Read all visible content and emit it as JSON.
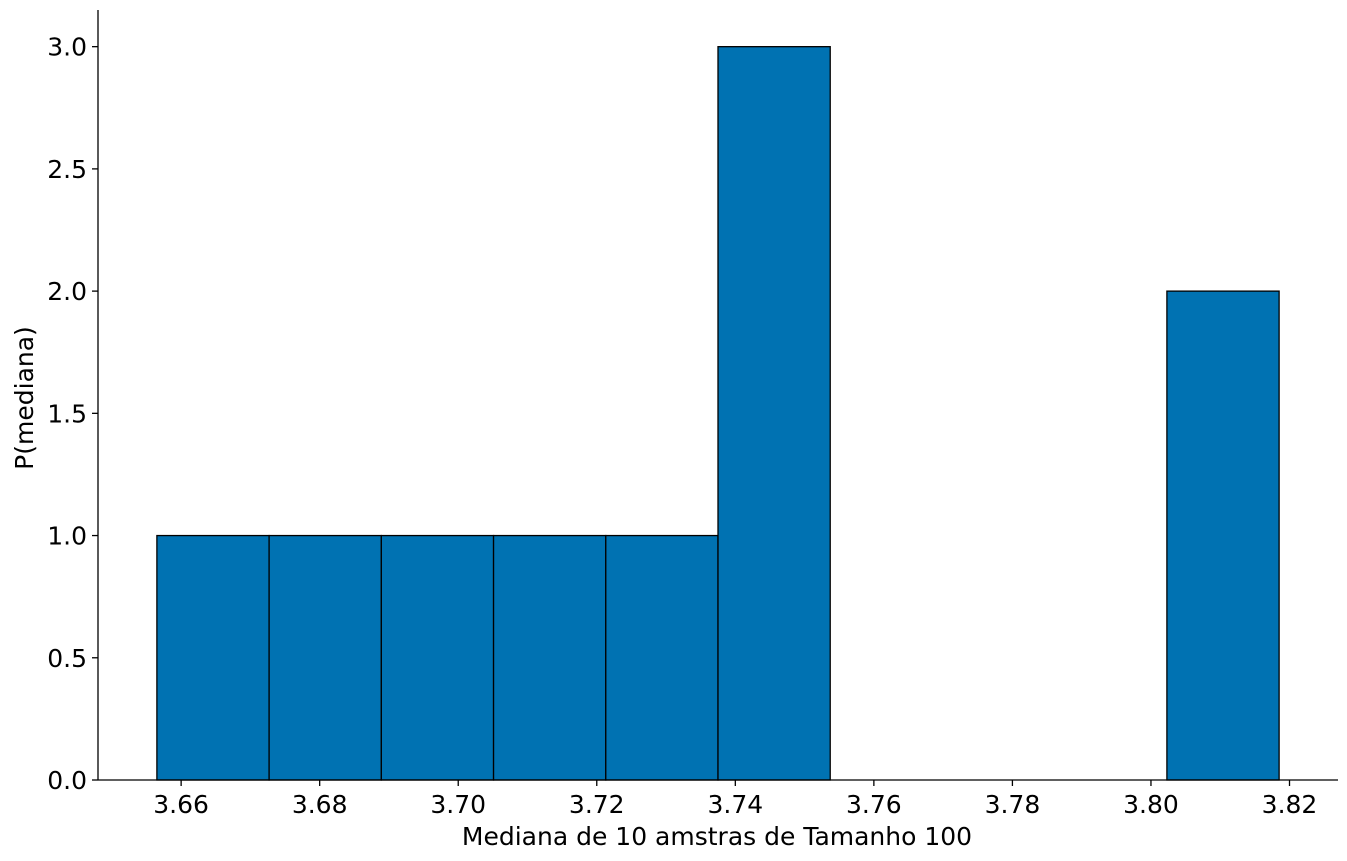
{
  "chart_data": {
    "type": "bar",
    "subtype": "histogram",
    "bins": [
      {
        "x0": 3.6565,
        "x1": 3.6727,
        "value": 1
      },
      {
        "x0": 3.6727,
        "x1": 3.6889,
        "value": 1
      },
      {
        "x0": 3.6889,
        "x1": 3.7051,
        "value": 1
      },
      {
        "x0": 3.7051,
        "x1": 3.7213,
        "value": 1
      },
      {
        "x0": 3.7213,
        "x1": 3.7375,
        "value": 1
      },
      {
        "x0": 3.7375,
        "x1": 3.7537,
        "value": 3
      },
      {
        "x0": 3.7537,
        "x1": 3.7699,
        "value": 0
      },
      {
        "x0": 3.7699,
        "x1": 3.7861,
        "value": 0
      },
      {
        "x0": 3.7861,
        "x1": 3.8023,
        "value": 0
      },
      {
        "x0": 3.8023,
        "x1": 3.8185,
        "value": 2
      }
    ],
    "xlabel": "Mediana de 10 amstras de Tamanho 100",
    "ylabel": "P(mediana)",
    "xlim": [
      3.648,
      3.827
    ],
    "ylim": [
      0,
      3.15
    ],
    "xticks": [
      3.66,
      3.68,
      3.7,
      3.72,
      3.74,
      3.76,
      3.78,
      3.8,
      3.82
    ],
    "xtick_labels": [
      "3.66",
      "3.68",
      "3.70",
      "3.72",
      "3.74",
      "3.76",
      "3.78",
      "3.80",
      "3.82"
    ],
    "yticks": [
      0.0,
      0.5,
      1.0,
      1.5,
      2.0,
      2.5,
      3.0
    ],
    "ytick_labels": [
      "0.0",
      "0.5",
      "1.0",
      "1.5",
      "2.0",
      "2.5",
      "3.0"
    ],
    "grid": false,
    "bar_color": "#0072b2",
    "edge_color": "#000000"
  }
}
